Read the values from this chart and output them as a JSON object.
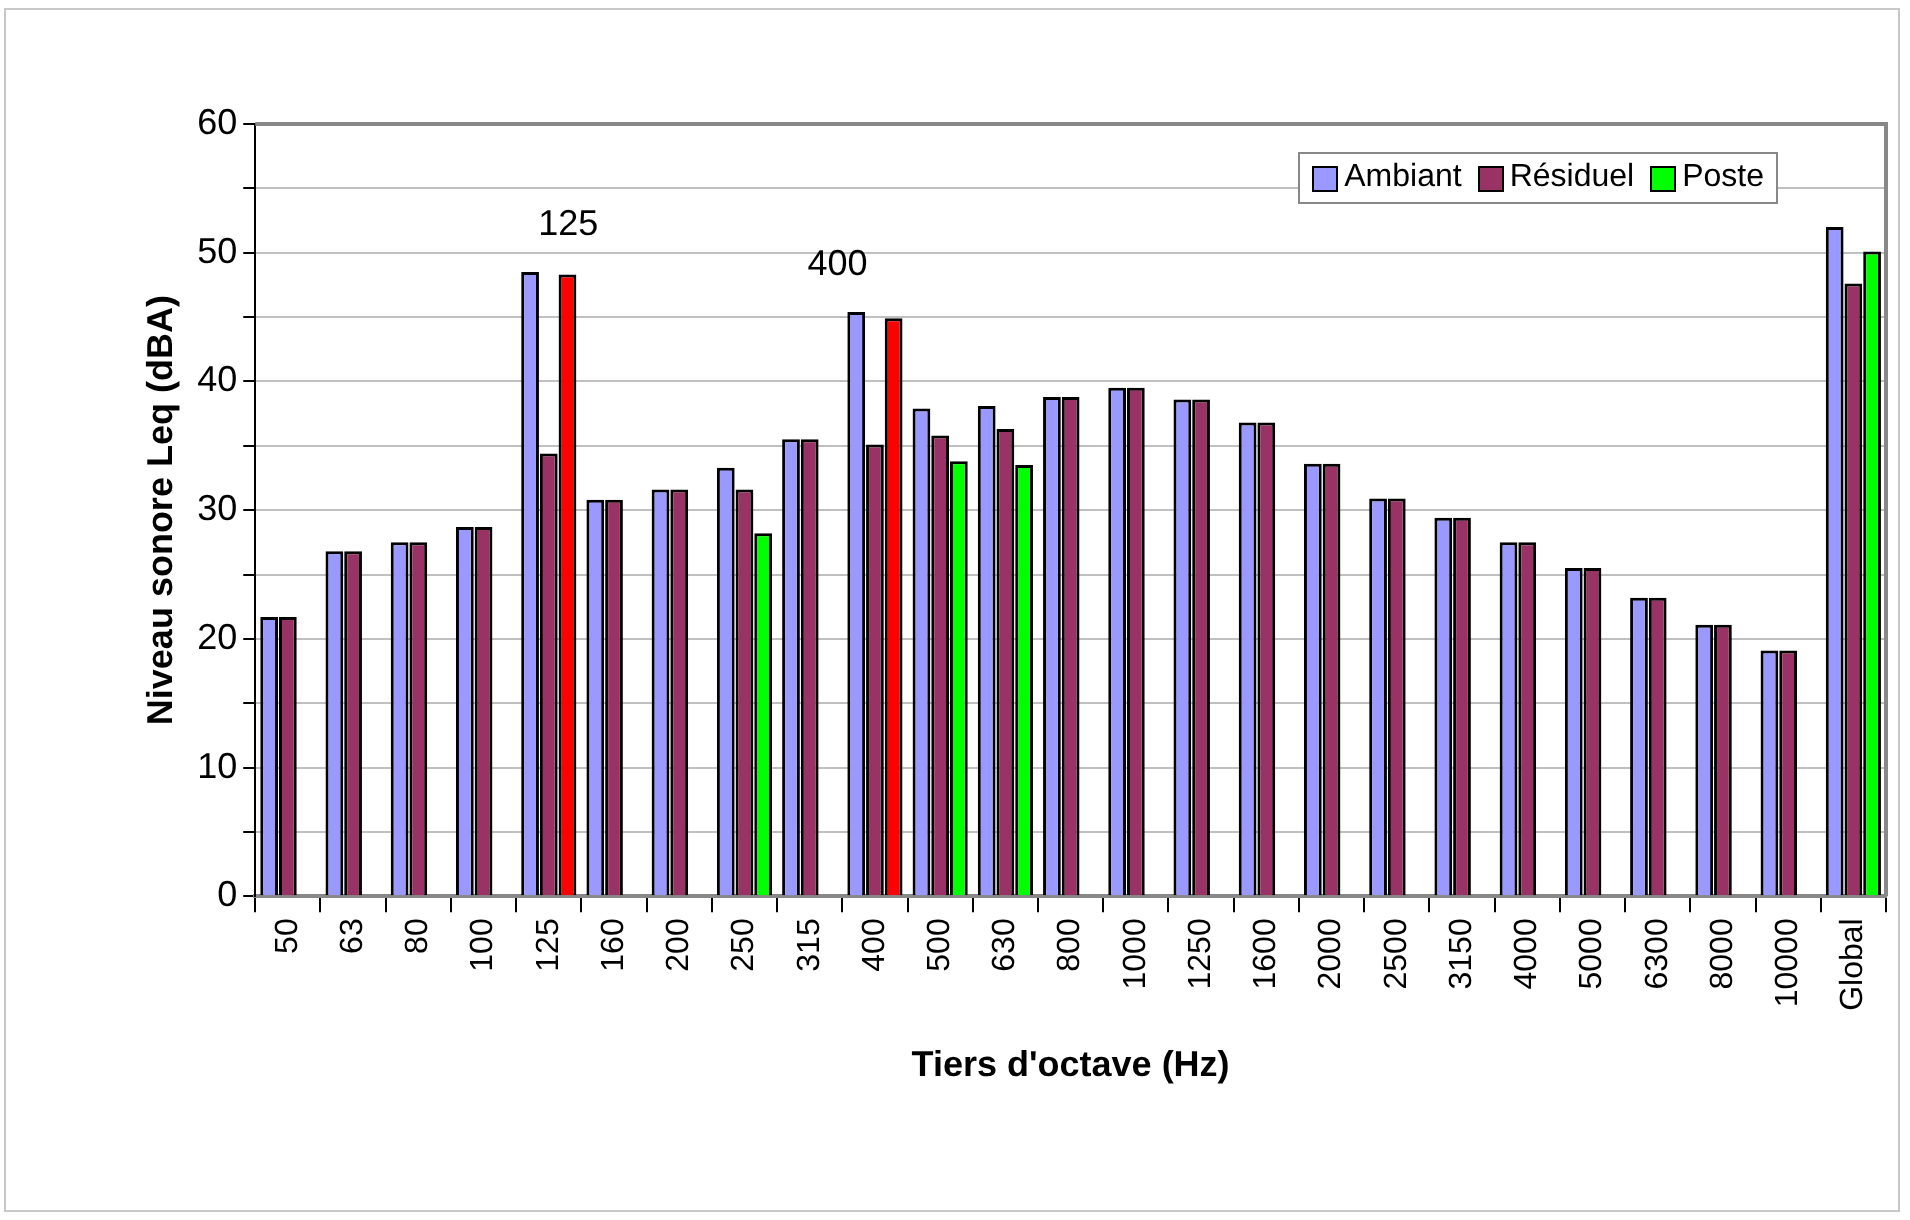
{
  "chart_data": {
    "type": "bar",
    "xlabel": "Tiers d'octave (Hz)",
    "ylabel": "Niveau sonore Leq (dBA)",
    "categories": [
      "50",
      "63",
      "80",
      "100",
      "125",
      "160",
      "200",
      "250",
      "315",
      "400",
      "500",
      "630",
      "800",
      "1000",
      "1250",
      "1600",
      "2000",
      "2500",
      "3150",
      "4000",
      "5000",
      "6300",
      "8000",
      "10000",
      "Global"
    ],
    "series": [
      {
        "name": "Ambiant",
        "color": "#9999ff",
        "values": [
          21.7,
          26.8,
          27.5,
          28.7,
          48.5,
          30.8,
          31.6,
          33.3,
          35.5,
          45.4,
          37.9,
          38.1,
          38.8,
          39.5,
          38.6,
          36.8,
          33.6,
          30.9,
          29.4,
          27.5,
          25.5,
          23.2,
          21.1,
          19.1,
          52.0
        ]
      },
      {
        "name": "Résiduel",
        "color": "#993366",
        "values": [
          21.7,
          26.8,
          27.5,
          28.7,
          34.4,
          30.8,
          31.6,
          31.6,
          35.5,
          35.1,
          35.8,
          36.3,
          38.8,
          39.5,
          38.6,
          36.8,
          33.6,
          30.9,
          29.4,
          27.5,
          25.5,
          23.2,
          21.1,
          19.1,
          47.6
        ]
      },
      {
        "name": "Poste",
        "color": "#00ff00",
        "colors": [
          null,
          null,
          null,
          null,
          "#ff0000",
          null,
          null,
          "#00ff00",
          null,
          "#ff0000",
          "#00ff00",
          "#00ff00",
          null,
          null,
          null,
          null,
          null,
          null,
          null,
          null,
          null,
          null,
          null,
          null,
          "#00ff00"
        ],
        "values": [
          null,
          null,
          null,
          null,
          48.3,
          null,
          null,
          28.2,
          null,
          44.9,
          33.8,
          33.5,
          null,
          null,
          null,
          null,
          null,
          null,
          null,
          null,
          null,
          null,
          null,
          null,
          50.1
        ]
      }
    ],
    "ylim": [
      0,
      60
    ],
    "yticks": [
      0,
      {
        "value": 5,
        "label": null
      },
      10,
      {
        "value": 15,
        "label": null
      },
      20,
      {
        "value": 25,
        "label": null
      },
      30,
      {
        "value": 35,
        "label": null
      },
      40,
      {
        "value": 45,
        "label": null
      },
      50,
      {
        "value": 55,
        "label": null
      },
      60
    ],
    "annotations": [
      "125",
      "400"
    ],
    "grid": "y",
    "legend": "top right"
  }
}
